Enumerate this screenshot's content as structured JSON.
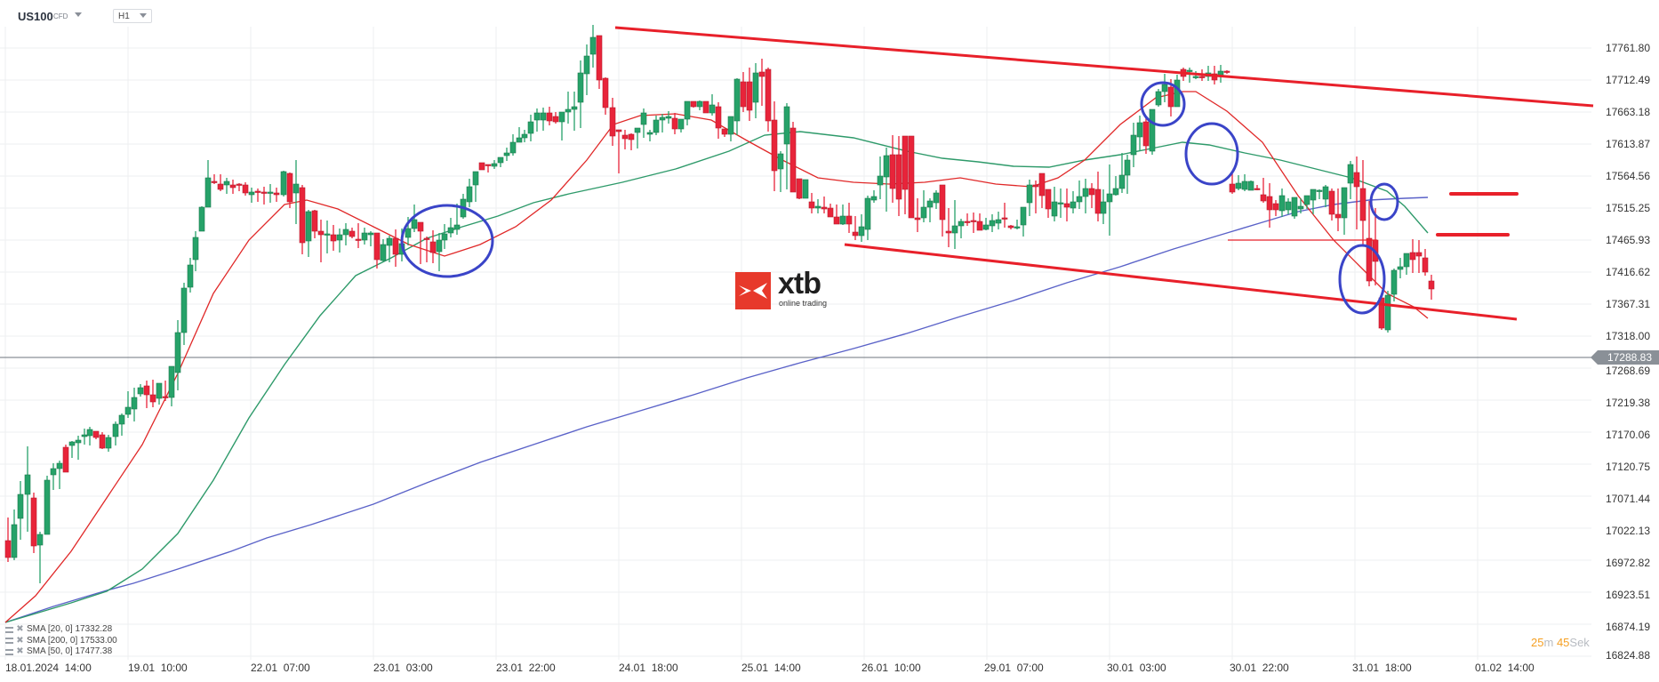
{
  "header": {
    "symbol": "US100",
    "symbol_type": "CFD",
    "timeframe": "H1"
  },
  "logo": {
    "name": "xtb",
    "tagline": "online trading"
  },
  "price_axis": [
    "17761.80",
    "17712.49",
    "17663.18",
    "17613.87",
    "17564.56",
    "17515.25",
    "17465.93",
    "17416.62",
    "17367.31",
    "17318.00",
    "17268.69",
    "17219.38",
    "17170.06",
    "17120.75",
    "17071.44",
    "17022.13",
    "16972.82",
    "16923.51",
    "16874.19",
    "16824.88"
  ],
  "current_price": "17288.83",
  "time_axis": [
    "18.01.2024  14:00",
    "19.01  10:00",
    "22.01  07:00",
    "23.01  03:00",
    "23.01  22:00",
    "24.01  18:00",
    "25.01  14:00",
    "26.01  10:00",
    "29.01  07:00",
    "30.01  03:00",
    "30.01  22:00",
    "31.01  18:00",
    "01.02  14:00"
  ],
  "legend": [
    {
      "label": "SMA [20, 0] 17332.28"
    },
    {
      "label": "SMA [200, 0] 17533.00"
    },
    {
      "label": "SMA [50, 0] 17477.38"
    }
  ],
  "countdown": {
    "minutes": "25",
    "min_unit": "m",
    "seconds": "45",
    "sec_unit": "Sek"
  },
  "colors": {
    "bull": "#26a269",
    "bear": "#e8243a",
    "sma20": "#e02828",
    "sma50": "#2e9a6a",
    "sma200": "#5a62c8",
    "trendline": "#e8202a",
    "annotation_circle": "#3a44c8",
    "current_price_line": "#8a9097"
  },
  "chart_data": {
    "type": "candlestick",
    "title": "US100 CFD H1",
    "xlabel": "",
    "ylabel": "",
    "ylim": [
      16824.88,
      17761.8
    ],
    "grid": true,
    "x": [
      "18.01.2024 14:00",
      "19.01 10:00",
      "22.01 07:00",
      "23.01 03:00",
      "23.01 22:00",
      "24.01 18:00",
      "25.01 14:00",
      "26.01 10:00",
      "29.01 07:00",
      "30.01 03:00",
      "30.01 22:00",
      "31.01 18:00",
      "01.02 14:00"
    ],
    "close_approx": [
      16990,
      17200,
      17540,
      17480,
      17580,
      17680,
      17640,
      17510,
      17540,
      17705,
      17430,
      17300,
      null
    ],
    "series": [
      {
        "name": "SMA [20, 0]",
        "last": 17332.28
      },
      {
        "name": "SMA [200, 0]",
        "last": 17533.0
      },
      {
        "name": "SMA [50, 0]",
        "last": 17477.38
      }
    ],
    "current_price": 17288.83,
    "high_approx": 17776,
    "low_approx": 16930,
    "annotations": [
      "descending channel upper trendline",
      "descending channel lower trendline",
      "horizontal support 17468",
      "circled SMA crosses",
      "two horizontal red dashes near 17540 and 17480"
    ]
  }
}
